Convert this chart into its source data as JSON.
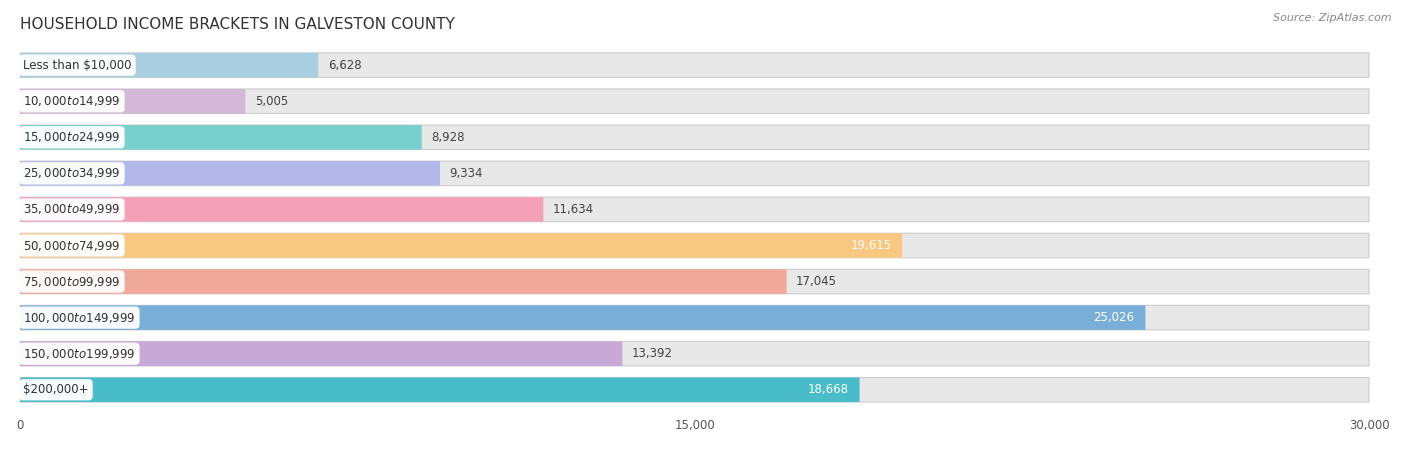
{
  "title": "HOUSEHOLD INCOME BRACKETS IN GALVESTON COUNTY",
  "source": "Source: ZipAtlas.com",
  "categories": [
    "Less than $10,000",
    "$10,000 to $14,999",
    "$15,000 to $24,999",
    "$25,000 to $34,999",
    "$35,000 to $49,999",
    "$50,000 to $74,999",
    "$75,000 to $99,999",
    "$100,000 to $149,999",
    "$150,000 to $199,999",
    "$200,000+"
  ],
  "values": [
    6628,
    5005,
    8928,
    9334,
    11634,
    19615,
    17045,
    25026,
    13392,
    18668
  ],
  "bar_colors": [
    "#aacfe0",
    "#d4b8d8",
    "#78d0cc",
    "#b4b8e8",
    "#f4a0b8",
    "#f8c880",
    "#f0a898",
    "#78aed8",
    "#c8a8d4",
    "#48bcc8"
  ],
  "label_inside": [
    false,
    false,
    false,
    false,
    false,
    true,
    false,
    true,
    false,
    true
  ],
  "xlim": [
    0,
    30000
  ],
  "xticks": [
    0,
    15000,
    30000
  ],
  "xtick_labels": [
    "0",
    "15,000",
    "30,000"
  ],
  "background_color": "#f0f0f0",
  "row_bg_color": "#e8e8e8",
  "title_fontsize": 11,
  "label_fontsize": 8.5,
  "value_fontsize": 8.5,
  "source_fontsize": 8
}
